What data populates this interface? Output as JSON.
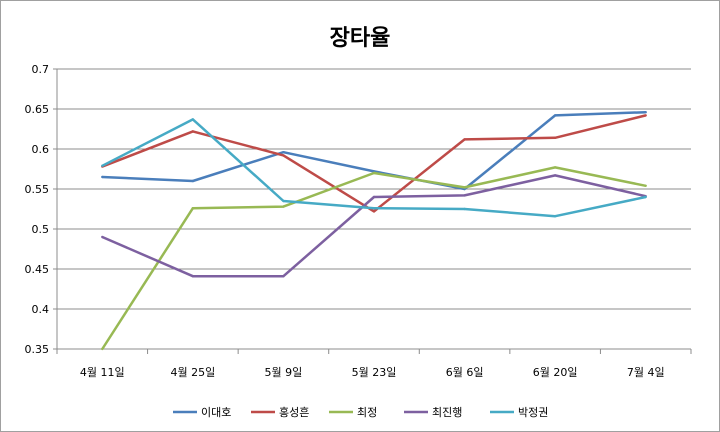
{
  "chart_data": {
    "type": "line",
    "title": "장타율",
    "xlabel": "",
    "ylabel": "",
    "categories": [
      "4월 11일",
      "4월 25일",
      "5월 9일",
      "5월 23일",
      "6월 6일",
      "6월 20일",
      "7월 4일"
    ],
    "ylim": [
      0.35,
      0.7
    ],
    "yticks": [
      "0.35",
      "0.4",
      "0.45",
      "0.5",
      "0.55",
      "0.6",
      "0.65",
      "0.7"
    ],
    "grid": true,
    "legend": "bottom",
    "series": [
      {
        "name": "이대호",
        "color": "#4a7ebb",
        "values": [
          0.565,
          0.56,
          0.596,
          0.572,
          0.55,
          0.642,
          0.646
        ]
      },
      {
        "name": "홍성흔",
        "color": "#be4b48",
        "values": [
          0.578,
          0.622,
          0.592,
          0.522,
          0.612,
          0.614,
          0.642
        ]
      },
      {
        "name": "최정",
        "color": "#98b954",
        "values": [
          0.35,
          0.526,
          0.528,
          0.57,
          0.552,
          0.577,
          0.554
        ]
      },
      {
        "name": "최진행",
        "color": "#7d60a0",
        "values": [
          0.49,
          0.441,
          0.441,
          0.54,
          0.542,
          0.567,
          0.541
        ]
      },
      {
        "name": "박정권",
        "color": "#46aac5",
        "values": [
          0.579,
          0.637,
          0.535,
          0.526,
          0.525,
          0.516,
          0.54
        ]
      }
    ]
  }
}
